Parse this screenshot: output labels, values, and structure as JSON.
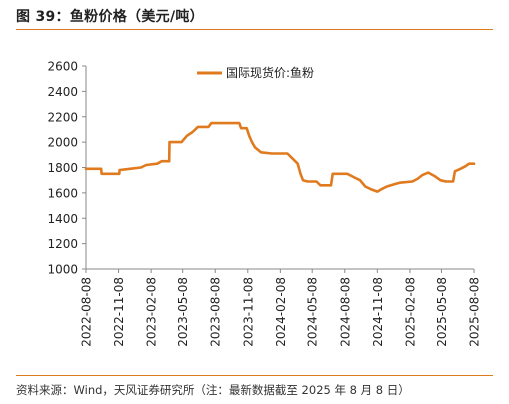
{
  "header": {
    "title": "图 39：鱼粉价格（美元/吨）"
  },
  "footer": {
    "source": "资料来源：Wind，天风证券研究所（注：最新数据截至 2025 年 8 月 8 日）"
  },
  "colors": {
    "series": "#e07a1f",
    "accent": "#e07a1f",
    "text": "#222222"
  },
  "chart_data": {
    "type": "line",
    "legend_position": "top-center",
    "grid": false,
    "ylim": [
      1000,
      2600
    ],
    "yticks": [
      1000,
      1200,
      1400,
      1600,
      1800,
      2000,
      2200,
      2400,
      2600
    ],
    "xlim": [
      "2022-08-08",
      "2025-08-08"
    ],
    "xticks": [
      "2022-08-08",
      "2022-11-08",
      "2023-02-08",
      "2023-05-08",
      "2023-08-08",
      "2023-11-08",
      "2024-02-08",
      "2024-05-08",
      "2024-08-08",
      "2024-11-08",
      "2025-02-08",
      "2025-05-08",
      "2025-08-08"
    ],
    "series": [
      {
        "name": "国际现货价:鱼粉",
        "points": [
          [
            "2022-08-08",
            1790
          ],
          [
            "2022-09-20",
            1790
          ],
          [
            "2022-09-21",
            1750
          ],
          [
            "2022-11-10",
            1750
          ],
          [
            "2022-11-11",
            1780
          ],
          [
            "2022-12-10",
            1790
          ],
          [
            "2023-01-10",
            1800
          ],
          [
            "2023-01-25",
            1820
          ],
          [
            "2023-02-25",
            1830
          ],
          [
            "2023-03-10",
            1850
          ],
          [
            "2023-03-31",
            1850
          ],
          [
            "2023-04-01",
            2000
          ],
          [
            "2023-05-05",
            2000
          ],
          [
            "2023-05-20",
            2050
          ],
          [
            "2023-06-05",
            2080
          ],
          [
            "2023-06-20",
            2120
          ],
          [
            "2023-07-20",
            2120
          ],
          [
            "2023-07-28",
            2150
          ],
          [
            "2023-10-15",
            2150
          ],
          [
            "2023-10-20",
            2110
          ],
          [
            "2023-11-05",
            2110
          ],
          [
            "2023-11-12",
            2050
          ],
          [
            "2023-11-20",
            2000
          ],
          [
            "2023-11-28",
            1960
          ],
          [
            "2023-12-15",
            1920
          ],
          [
            "2024-01-15",
            1910
          ],
          [
            "2024-02-28",
            1910
          ],
          [
            "2024-03-10",
            1880
          ],
          [
            "2024-03-28",
            1830
          ],
          [
            "2024-04-05",
            1750
          ],
          [
            "2024-04-12",
            1700
          ],
          [
            "2024-04-25",
            1690
          ],
          [
            "2024-05-20",
            1690
          ],
          [
            "2024-05-31",
            1660
          ],
          [
            "2024-06-30",
            1660
          ],
          [
            "2024-07-05",
            1750
          ],
          [
            "2024-08-15",
            1750
          ],
          [
            "2024-09-05",
            1720
          ],
          [
            "2024-09-20",
            1700
          ],
          [
            "2024-10-05",
            1650
          ],
          [
            "2024-10-20",
            1630
          ],
          [
            "2024-11-08",
            1610
          ],
          [
            "2024-11-20",
            1630
          ],
          [
            "2024-12-05",
            1650
          ],
          [
            "2024-12-28",
            1670
          ],
          [
            "2025-01-10",
            1680
          ],
          [
            "2025-02-15",
            1690
          ],
          [
            "2025-03-01",
            1710
          ],
          [
            "2025-03-15",
            1740
          ],
          [
            "2025-04-01",
            1760
          ],
          [
            "2025-04-20",
            1730
          ],
          [
            "2025-05-05",
            1700
          ],
          [
            "2025-05-20",
            1690
          ],
          [
            "2025-06-10",
            1690
          ],
          [
            "2025-06-15",
            1770
          ],
          [
            "2025-07-01",
            1790
          ],
          [
            "2025-07-15",
            1810
          ],
          [
            "2025-07-25",
            1830
          ],
          [
            "2025-08-08",
            1830
          ]
        ]
      }
    ]
  }
}
